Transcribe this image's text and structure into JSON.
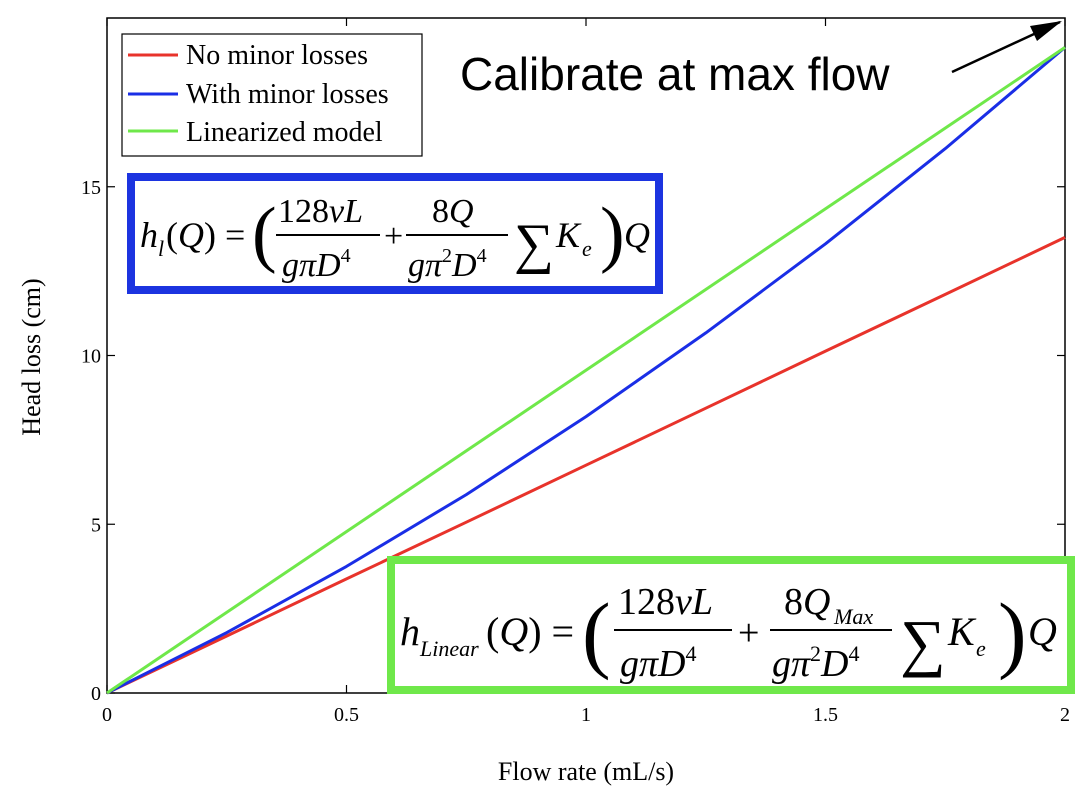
{
  "chart_data": {
    "type": "line",
    "xlabel": "Flow rate (mL/s)",
    "ylabel": "Head loss (cm)",
    "xlim": [
      0,
      2
    ],
    "ylim": [
      0,
      20
    ],
    "x_ticks": [
      {
        "value": 0,
        "label": "0"
      },
      {
        "value": 0.5,
        "label": "0.5"
      },
      {
        "value": 1,
        "label": "1"
      },
      {
        "value": 1.5,
        "label": "1.5"
      },
      {
        "value": 2,
        "label": "2"
      }
    ],
    "y_ticks": [
      {
        "value": 0,
        "label": "0"
      },
      {
        "value": 5,
        "label": "5"
      },
      {
        "value": 10,
        "label": "10"
      },
      {
        "value": 15,
        "label": "15"
      }
    ],
    "grid": false,
    "legend_position": "top-left",
    "series": [
      {
        "name": "No minor losses",
        "color": "#e8332b",
        "x": [
          0,
          0.25,
          0.5,
          0.75,
          1.0,
          1.25,
          1.5,
          1.75,
          2.0
        ],
        "y": [
          0,
          1.69,
          3.38,
          5.06,
          6.75,
          8.44,
          10.13,
          11.81,
          13.5
        ]
      },
      {
        "name": "With minor losses",
        "color": "#1a2ee6",
        "x": [
          0,
          0.25,
          0.5,
          0.75,
          1.0,
          1.25,
          1.5,
          1.75,
          2.0
        ],
        "y": [
          0,
          1.79,
          3.75,
          5.88,
          8.19,
          10.67,
          13.31,
          16.13,
          19.13
        ]
      },
      {
        "name": "Linearized model",
        "color": "#6fe84a",
        "x": [
          0,
          2.0
        ],
        "y": [
          0,
          19.13
        ]
      }
    ],
    "annotations": [
      {
        "text": "Calibrate at max flow",
        "arrow_to": {
          "x": 2.0,
          "y": 19.13
        }
      }
    ],
    "equation_boxes": [
      {
        "name": "minor-loss-equation",
        "border_color": "#1c34e0",
        "formula": "h_l(Q) = (128νL/(gπD⁴) + 8Q/(gπ²D⁴) ΣK_e) Q"
      },
      {
        "name": "linear-equation",
        "border_color": "#6fe84a",
        "formula": "h_Linear(Q) = (128νL/(gπD⁴) + 8Q_Max/(gπ²D⁴) ΣK_e) Q"
      }
    ]
  }
}
